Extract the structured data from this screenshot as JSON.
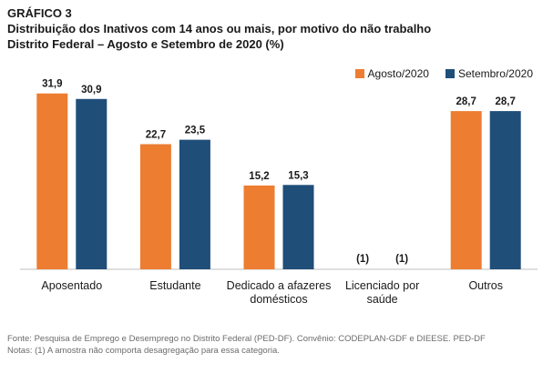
{
  "header": {
    "figure_label": "GRÁFICO 3",
    "title_line1": "Distribuição dos Inativos com 14 anos ou mais, por motivo do não trabalho",
    "title_line2": "Distrito Federal – Agosto e Setembro de 2020 (%)"
  },
  "colors": {
    "agosto": "#ED7D31",
    "setembro": "#1F4E79",
    "axis": "#bfbfbf"
  },
  "chart_data": {
    "type": "bar",
    "title": "Distribuição dos Inativos com 14 anos ou mais, por motivo do não trabalho",
    "subtitle": "Distrito Federal – Agosto e Setembro de 2020 (%)",
    "xlabel": "",
    "ylabel": "",
    "ylim": [
      0,
      34
    ],
    "grid": false,
    "legend_position": "top-right",
    "categories": [
      [
        "Aposentado"
      ],
      [
        "Estudante"
      ],
      [
        "Dedicado a afazeres",
        "domésticos"
      ],
      [
        "Licenciado por",
        "saúde"
      ],
      [
        "Outros"
      ]
    ],
    "series": [
      {
        "name": "Agosto/2020",
        "values": [
          31.9,
          22.7,
          15.2,
          null,
          28.7
        ],
        "labels": [
          "31,9",
          "22,7",
          "15,2",
          "(1)",
          "28,7"
        ]
      },
      {
        "name": "Setembro/2020",
        "values": [
          30.9,
          23.5,
          15.3,
          null,
          28.7
        ],
        "labels": [
          "30,9",
          "23,5",
          "15,3",
          "(1)",
          "28,7"
        ]
      }
    ]
  },
  "footer": {
    "source": "Fonte: Pesquisa de Emprego e Desemprego no Distrito Federal (PED-DF). Convênio: CODEPLAN-GDF e DIEESE. PED-DF",
    "notes": "Notas: (1) A amostra não comporta desagregação para essa categoria."
  }
}
